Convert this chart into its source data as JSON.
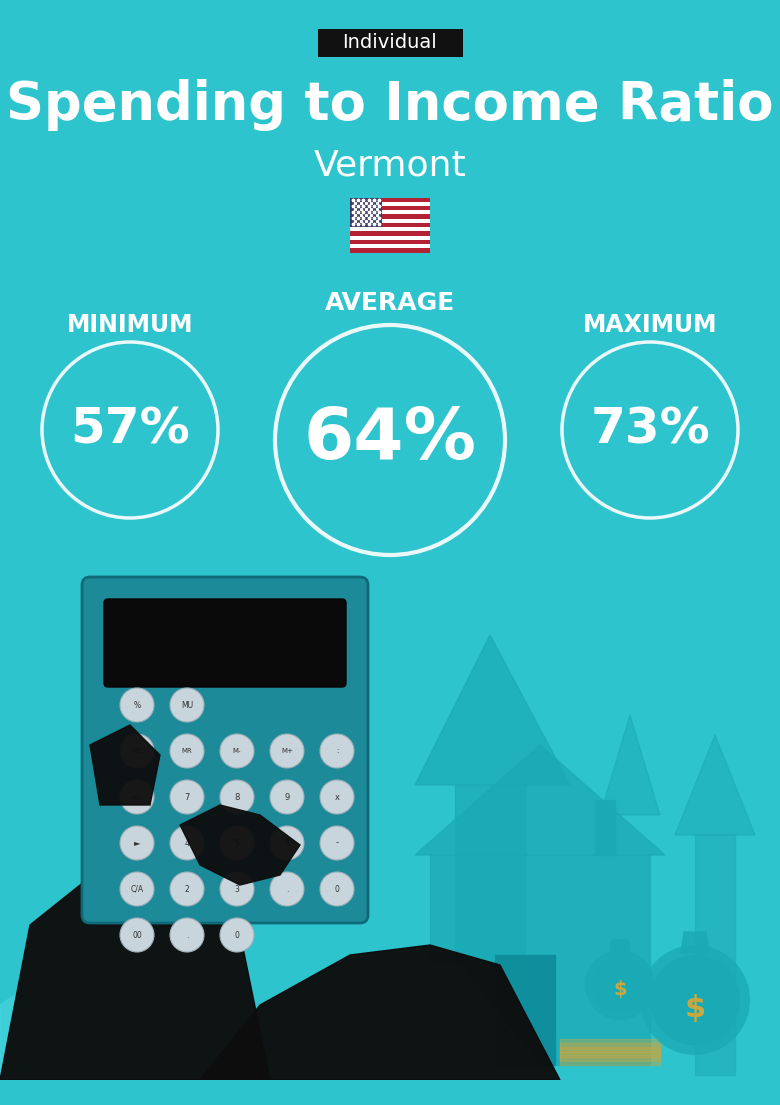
{
  "title": "Spending to Income Ratio",
  "subtitle": "Vermont",
  "tag_label": "Individual",
  "bg_color": "#2EC4CE",
  "text_color": "#FFFFFF",
  "tag_bg": "#111111",
  "min_label": "MINIMUM",
  "avg_label": "AVERAGE",
  "max_label": "MAXIMUM",
  "min_value": "57%",
  "avg_value": "64%",
  "max_value": "73%",
  "circle_color": "#FFFFFF",
  "circle_alpha": 0.9,
  "title_fontsize": 38,
  "subtitle_fontsize": 26,
  "tag_fontsize": 14,
  "label_fontsize": 17,
  "value_fontsize_small": 36,
  "value_fontsize_large": 52,
  "fig_width": 7.8,
  "fig_height": 11.05,
  "arrow_color": "#1AAAB5",
  "house_color": "#1AAAB5",
  "calc_body": "#1D8A99",
  "calc_screen": "#0A0A0A",
  "hand_color": "#0D0D0D",
  "btn_color": "#C8D5DC",
  "money_bag_color": "#1AAAB5",
  "dollar_color": "#C8A840"
}
